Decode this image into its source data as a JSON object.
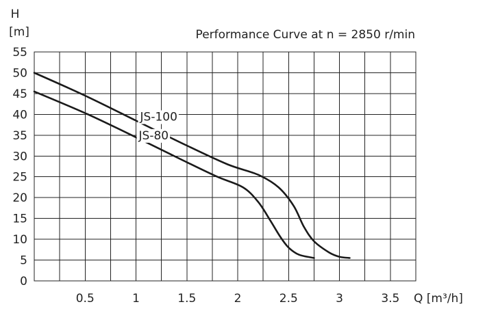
{
  "chart_data": {
    "type": "line",
    "title": "Performance Curve at n = 2850 r/min",
    "ylabel_line1": "H",
    "ylabel_line2": "[m]",
    "xlabel": "Q [m³/h]",
    "xlim": [
      0,
      3.75
    ],
    "ylim": [
      0,
      55
    ],
    "x_ticks": [
      0.5,
      1,
      1.5,
      2,
      2.5,
      3,
      3.5
    ],
    "x_tick_labels": [
      "0.5",
      "1",
      "1.5",
      "2",
      "2.5",
      "3",
      "3.5"
    ],
    "y_ticks": [
      0,
      5,
      10,
      15,
      20,
      25,
      30,
      35,
      40,
      45,
      50,
      55
    ],
    "y_tick_labels": [
      "0",
      "5",
      "10",
      "15",
      "20",
      "25",
      "30",
      "35",
      "40",
      "45",
      "50",
      "55"
    ],
    "grid": true,
    "series": [
      {
        "name": "JS-100",
        "x": [
          0,
          0.5,
          1.0,
          1.5,
          1.9,
          2.2,
          2.4,
          2.55,
          2.65,
          2.75,
          2.9,
          3.0,
          3.1
        ],
        "y": [
          50,
          44.5,
          38.5,
          32.5,
          28,
          25.5,
          22.5,
          18,
          13,
          9.5,
          6.8,
          5.8,
          5.5
        ]
      },
      {
        "name": "JS-80",
        "x": [
          0,
          0.5,
          1.0,
          1.5,
          1.8,
          2.05,
          2.2,
          2.32,
          2.42,
          2.5,
          2.6,
          2.75
        ],
        "y": [
          45.5,
          40.3,
          34.5,
          28.5,
          25,
          22.5,
          19,
          14.5,
          10.5,
          8,
          6.3,
          5.5
        ]
      }
    ]
  }
}
